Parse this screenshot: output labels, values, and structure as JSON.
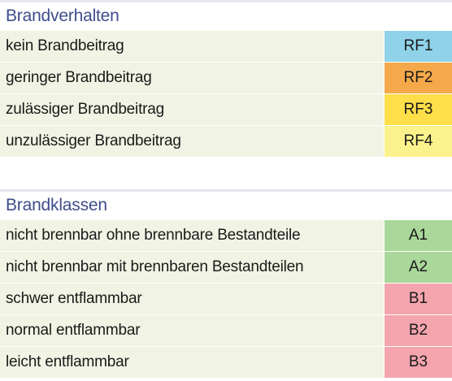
{
  "fire_behavior": {
    "title": "Brandverhalten",
    "rows": [
      {
        "label": "kein Brandbeitrag",
        "code": "RF1",
        "color": "#8fd2e9"
      },
      {
        "label": "geringer Brandbeitrag",
        "code": "RF2",
        "color": "#f6a94a"
      },
      {
        "label": "zulässiger Brandbeitrag",
        "code": "RF3",
        "color": "#fede49"
      },
      {
        "label": "unzulässiger Brandbeitrag",
        "code": "RF4",
        "color": "#fcf28c"
      }
    ]
  },
  "fire_classes": {
    "title": "Brandklassen",
    "rows": [
      {
        "label": "nicht brennbar ohne brennbare Bestandteile",
        "code": "A1",
        "color": "#a9d89a"
      },
      {
        "label": "nicht brennbar mit brennbaren Bestandteilen",
        "code": "A2",
        "color": "#a9d89a"
      },
      {
        "label": "schwer entflammbar",
        "code": "B1",
        "color": "#f3a4ad"
      },
      {
        "label": "normal entflammbar",
        "code": "B2",
        "color": "#f3a4ad"
      },
      {
        "label": "leicht entflammbar",
        "code": "B3",
        "color": "#f3a4ad"
      }
    ]
  },
  "colors": {
    "heading": "#3e4d8c",
    "row_background": "#f1f4e4",
    "separator": "#e4e8ec"
  }
}
